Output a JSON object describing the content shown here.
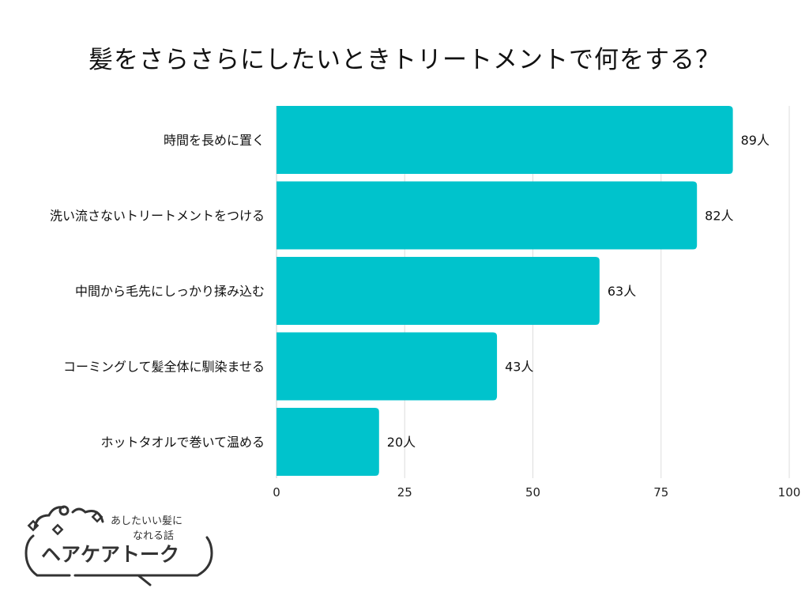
{
  "chart_data": {
    "type": "bar",
    "orientation": "horizontal",
    "title": "髪をさらさらにしたいときトリートメントで何をする？",
    "categories": [
      "時間を長めに置く",
      "洗い流さないトリートメントをつける",
      "中間から毛先にしっかり揉み込む",
      "コーミングして髪全体に馴染ませる",
      "ホットタオルで巻いて温める"
    ],
    "values": [
      89,
      82,
      63,
      43,
      20
    ],
    "value_suffix": "人",
    "xlim": [
      0,
      100
    ],
    "xticks": [
      0,
      25,
      50,
      75,
      100
    ],
    "xlabel": "",
    "ylabel": "",
    "grid": true,
    "bar_color": "#00C3CC"
  },
  "logo": {
    "tagline_line1": "あしたいい髪に",
    "tagline_line2": "なれる話",
    "name": "ヘアケアトーク"
  }
}
